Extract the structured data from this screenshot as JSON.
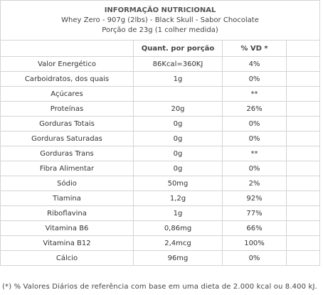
{
  "header": {
    "title": "INFORMAÇÃO NUTRICIONAL",
    "product_line": "Whey Zero - 907g (2lbs) - Black Skull - Sabor Chocolate",
    "serving_line": "Porção de 23g (1 colher medida)"
  },
  "columns": {
    "nutrient": "",
    "quantity": "Quant. por porção",
    "daily_value": "% VD *"
  },
  "rows": [
    {
      "nutrient": "Valor Energético",
      "quantity": "86Kcal=360KJ",
      "daily_value": "4%"
    },
    {
      "nutrient": "Carboidratos, dos quais",
      "quantity": "1g",
      "daily_value": "0%"
    },
    {
      "nutrient": "Açúcares",
      "quantity": "",
      "daily_value": "**"
    },
    {
      "nutrient": "Proteínas",
      "quantity": "20g",
      "daily_value": "26%"
    },
    {
      "nutrient": "Gorduras Totais",
      "quantity": "0g",
      "daily_value": "0%"
    },
    {
      "nutrient": "Gorduras Saturadas",
      "quantity": "0g",
      "daily_value": "0%"
    },
    {
      "nutrient": "Gorduras Trans",
      "quantity": "0g",
      "daily_value": "**"
    },
    {
      "nutrient": "Fibra Alimentar",
      "quantity": "0g",
      "daily_value": "0%"
    },
    {
      "nutrient": "Sódio",
      "quantity": "50mg",
      "daily_value": "2%"
    },
    {
      "nutrient": "Tiamina",
      "quantity": "1,2g",
      "daily_value": "92%"
    },
    {
      "nutrient": "Riboflavina",
      "quantity": "1g",
      "daily_value": "77%"
    },
    {
      "nutrient": "Vitamina B6",
      "quantity": "0,86mg",
      "daily_value": "66%"
    },
    {
      "nutrient": "Vitamina B12",
      "quantity": "2,4mcg",
      "daily_value": "100%"
    },
    {
      "nutrient": "Cálcio",
      "quantity": "96mg",
      "daily_value": "0%"
    }
  ],
  "footnote": "(*) % Valores Diários de referência com base em uma dieta de 2.000 kcal ou 8.400 kJ."
}
